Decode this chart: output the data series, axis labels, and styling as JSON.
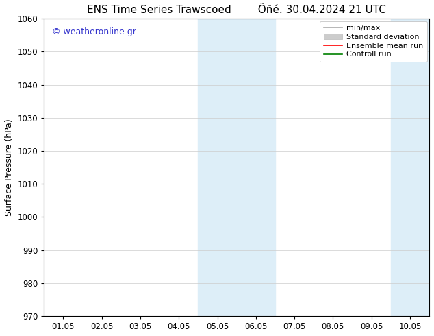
{
  "title_left": "ENS Time Series Trawscoed",
  "title_right": "Ôñé. 30.04.2024 21 UTC",
  "ylabel": "Surface Pressure (hPa)",
  "xlabel_ticks": [
    "01.05",
    "02.05",
    "03.05",
    "04.05",
    "05.05",
    "06.05",
    "07.05",
    "08.05",
    "09.05",
    "10.05"
  ],
  "ylim": [
    970,
    1060
  ],
  "yticks": [
    970,
    980,
    990,
    1000,
    1010,
    1020,
    1030,
    1040,
    1050,
    1060
  ],
  "watermark": "© weatheronline.gr",
  "watermark_color": "#3333cc",
  "background_color": "#ffffff",
  "shaded_regions": [
    {
      "xstart": 3.5,
      "xend": 5.5,
      "color": "#ddeef8"
    },
    {
      "xstart": 8.5,
      "xend": 10.0,
      "color": "#ddeef8"
    }
  ],
  "legend_items": [
    {
      "label": "min/max",
      "color": "#aaaaaa",
      "lw": 1.2,
      "patch": false
    },
    {
      "label": "Standard deviation",
      "color": "#cccccc",
      "lw": 8,
      "patch": true
    },
    {
      "label": "Ensemble mean run",
      "color": "#ff0000",
      "lw": 1.2,
      "patch": false
    },
    {
      "label": "Controll run",
      "color": "#008000",
      "lw": 1.2,
      "patch": false
    }
  ],
  "title_fontsize": 11,
  "axis_label_fontsize": 9,
  "tick_fontsize": 8.5,
  "legend_fontsize": 8
}
